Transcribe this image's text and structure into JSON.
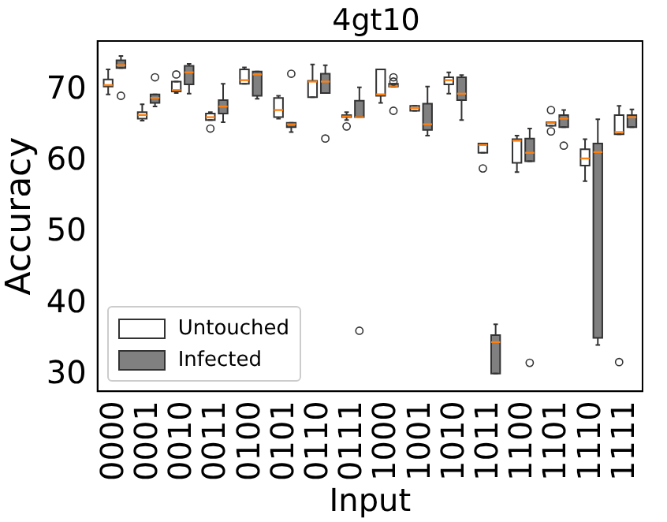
{
  "chart_data": {
    "type": "box",
    "title": "4gt10",
    "xlabel": "Input",
    "ylabel": "Accuracy",
    "categories": [
      "0000",
      "0001",
      "0010",
      "0011",
      "0100",
      "0101",
      "0110",
      "0111",
      "1000",
      "1001",
      "1010",
      "1011",
      "1100",
      "1101",
      "1110",
      "1111"
    ],
    "ylim": [
      27.7,
      76.9
    ],
    "yticks": [
      30,
      40,
      50,
      60,
      70
    ],
    "grid": false,
    "legend": "bottom left",
    "series": [
      {
        "name": "Untouched",
        "color": "#ffffff",
        "boxes": [
          {
            "low": 69.4,
            "q1": 70.5,
            "median": 70.7,
            "q3": 71.5,
            "high": 72.9
          },
          {
            "low": 65.7,
            "q1": 66.0,
            "median": 66.5,
            "q3": 66.9,
            "high": 68.0
          },
          {
            "low": 69.6,
            "q1": 69.8,
            "median": 70.0,
            "q3": 71.2,
            "high": 71.2,
            "outliers": [
              72.2
            ]
          },
          {
            "low": 65.8,
            "q1": 65.8,
            "median": 66.2,
            "q3": 66.7,
            "high": 66.9,
            "outliers": [
              64.6
            ]
          },
          {
            "low": 70.9,
            "q1": 70.9,
            "median": 71.4,
            "q3": 72.9,
            "high": 73.2
          },
          {
            "low": 66.0,
            "q1": 66.2,
            "median": 67.2,
            "q3": 68.9,
            "high": 69.2
          },
          {
            "low": 69.0,
            "q1": 69.0,
            "median": 71.2,
            "q3": 71.3,
            "high": 73.6
          },
          {
            "low": 65.8,
            "q1": 66.2,
            "median": 66.3,
            "q3": 66.5,
            "high": 66.9,
            "outliers": [
              64.9
            ]
          },
          {
            "low": 68.2,
            "q1": 69.2,
            "median": 69.4,
            "q3": 72.9,
            "high": 72.9
          },
          {
            "low": 67.1,
            "q1": 67.1,
            "median": 67.5,
            "q3": 67.8,
            "high": 67.8
          },
          {
            "low": 69.5,
            "q1": 70.8,
            "median": 71.4,
            "q3": 71.8,
            "high": 72.5
          },
          {
            "low": 61.2,
            "q1": 61.2,
            "median": 62.3,
            "q3": 62.5,
            "high": 62.5,
            "outliers": [
              59.0
            ]
          },
          {
            "low": 58.5,
            "q1": 59.8,
            "median": 62.9,
            "q3": 63.1,
            "high": 63.6
          },
          {
            "low": 65.0,
            "q1": 65.0,
            "median": 65.4,
            "q3": 65.5,
            "high": 65.5,
            "outliers": [
              67.2,
              64.2
            ]
          },
          {
            "low": 57.2,
            "q1": 59.4,
            "median": 60.4,
            "q3": 61.7,
            "high": 63.1
          },
          {
            "low": 63.8,
            "q1": 63.8,
            "median": 64.1,
            "q3": 66.5,
            "high": 67.8,
            "outliers": [
              31.8
            ]
          }
        ]
      },
      {
        "name": "Infected",
        "color": "#808080",
        "boxes": [
          {
            "low": 73.1,
            "q1": 73.1,
            "median": 73.5,
            "q3": 74.2,
            "high": 74.8,
            "outliers": [
              69.2
            ]
          },
          {
            "low": 67.7,
            "q1": 68.2,
            "median": 68.9,
            "q3": 69.4,
            "high": 69.4,
            "outliers": [
              71.8
            ]
          },
          {
            "low": 69.5,
            "q1": 70.8,
            "median": 72.5,
            "q3": 73.4,
            "high": 73.7
          },
          {
            "low": 65.5,
            "q1": 66.7,
            "median": 67.7,
            "q3": 68.6,
            "high": 70.9
          },
          {
            "low": 68.8,
            "q1": 69.2,
            "median": 72.2,
            "q3": 72.6,
            "high": 72.6
          },
          {
            "low": 64.1,
            "q1": 64.8,
            "median": 65.2,
            "q3": 65.4,
            "high": 65.4,
            "outliers": [
              72.3
            ]
          },
          {
            "low": 69.6,
            "q1": 69.6,
            "median": 71.2,
            "q3": 72.3,
            "high": 73.5,
            "outliers": [
              63.2
            ]
          },
          {
            "low": 66.2,
            "q1": 66.2,
            "median": 66.2,
            "q3": 68.5,
            "high": 70.4,
            "outliers": [
              36.2
            ]
          },
          {
            "low": 70.5,
            "q1": 70.5,
            "median": 70.6,
            "q3": 70.9,
            "high": 70.9,
            "outliers": [
              71.8,
              71.2,
              67.1
            ]
          },
          {
            "low": 63.6,
            "q1": 64.4,
            "median": 65.2,
            "q3": 68.1,
            "high": 70.5
          },
          {
            "low": 65.8,
            "q1": 68.6,
            "median": 69.5,
            "q3": 71.8,
            "high": 72.1
          },
          {
            "low": 30.2,
            "q1": 30.2,
            "median": 34.6,
            "q3": 35.6,
            "high": 37.1
          },
          {
            "low": 60.0,
            "q1": 60.0,
            "median": 61.2,
            "q3": 63.2,
            "high": 64.6,
            "outliers": [
              31.7
            ]
          },
          {
            "low": 64.8,
            "q1": 64.8,
            "median": 66.0,
            "q3": 66.5,
            "high": 67.2,
            "outliers": [
              62.2
            ]
          },
          {
            "low": 34.2,
            "q1": 35.2,
            "median": 61.3,
            "q3": 62.5,
            "high": 65.9
          },
          {
            "low": 64.8,
            "q1": 64.8,
            "median": 66.2,
            "q3": 66.5,
            "high": 67.3
          }
        ]
      }
    ]
  }
}
